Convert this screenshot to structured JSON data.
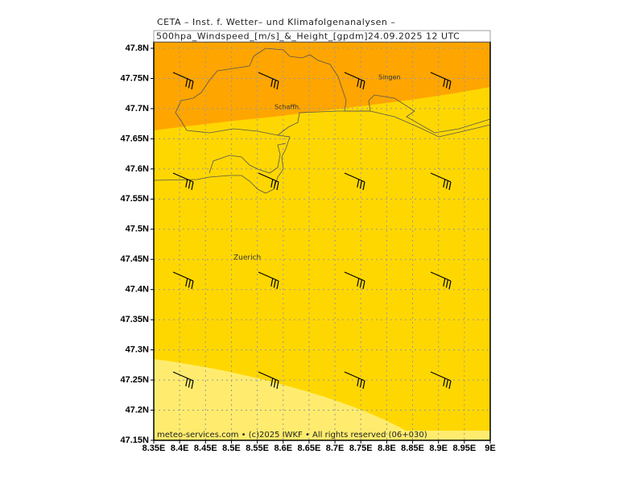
{
  "header": {
    "title": "CETA – Inst. f. Wetter– und Klimafolgenanalysen –",
    "subtitle": "500hpa_Windspeed_[m/s]_&_Height_[gpdm]24.09.2025 12 UTC"
  },
  "x_axis": {
    "labels": [
      "8.35E",
      "8.4E",
      "8.45E",
      "8.5E",
      "8.55E",
      "8.6E",
      "8.65E",
      "8.7E",
      "8.75E",
      "8.8E",
      "8.85E",
      "8.9E",
      "8.95E",
      "9E"
    ]
  },
  "y_axis": {
    "labels": [
      "47.8N",
      "47.75N",
      "47.7N",
      "47.65N",
      "47.6N",
      "47.55N",
      "47.5N",
      "47.45N",
      "47.4N",
      "47.35N",
      "47.3N",
      "47.25N",
      "47.2N",
      "47.15N"
    ]
  },
  "places": [
    "Singen",
    "Schaffh.",
    "Zuerich"
  ],
  "footer": "meteo-services.com • (c)2025 IWKF • All rights reserved (06+030)"
}
